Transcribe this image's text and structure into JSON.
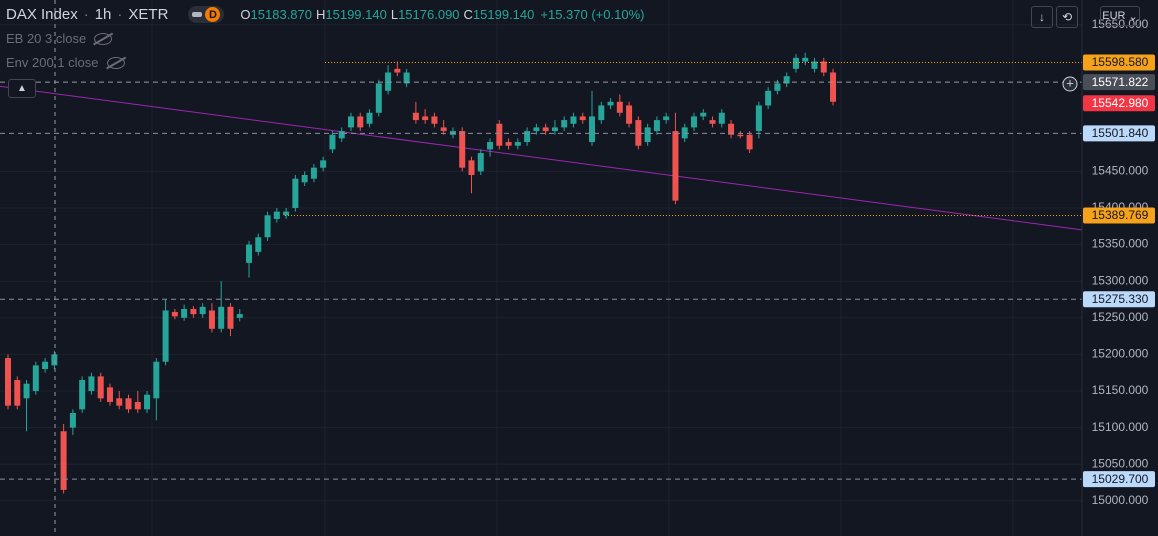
{
  "header": {
    "symbol": "DAX Index",
    "interval": "1h",
    "exchange": "XETR",
    "badge": "D",
    "ohlc": [
      {
        "key": "O",
        "value": "15183.870"
      },
      {
        "key": "H",
        "value": "15199.140"
      },
      {
        "key": "L",
        "value": "15176.090"
      },
      {
        "key": "C",
        "value": "15199.140"
      }
    ],
    "change": "+15.370 (+0.10%)",
    "indicators": [
      "EB 20 3 close",
      "Env 200 1 close"
    ],
    "currency": "EUR"
  },
  "chart_data": {
    "type": "candlestick",
    "up_color": "#26a69a",
    "down_color": "#ef5350",
    "open": [
      15195,
      15165,
      15140,
      15150,
      15180,
      15185,
      15095,
      15100,
      15125,
      15150,
      15170,
      15155,
      15140,
      15140,
      15135,
      15125,
      15140,
      15190,
      15258,
      15250,
      15262,
      15255,
      15260,
      15235,
      15265,
      15250,
      15325,
      15340,
      15360,
      15385,
      15390,
      15400,
      15435,
      15440,
      15455,
      15480,
      15495,
      15510,
      15525,
      15515,
      15530,
      15560,
      15590,
      15570,
      15530,
      15525,
      15525,
      15510,
      15500,
      15505,
      15465,
      15450,
      15480,
      15515,
      15490,
      15485,
      15490,
      15505,
      15510,
      15505,
      15510,
      15515,
      15525,
      15490,
      15520,
      15540,
      15545,
      15540,
      15520,
      15490,
      15505,
      15520,
      15505,
      15495,
      15510,
      15525,
      15520,
      15515,
      15515,
      15500,
      15500,
      15505,
      15540,
      15560,
      15570,
      15590,
      15600,
      15590,
      15600,
      15585
    ],
    "high": [
      15200,
      15170,
      15165,
      15190,
      15195,
      15205,
      15105,
      15125,
      15170,
      15175,
      15175,
      15160,
      15150,
      15145,
      15150,
      15150,
      15195,
      15275,
      15262,
      15268,
      15266,
      15270,
      15270,
      15300,
      15270,
      15262,
      15355,
      15365,
      15395,
      15400,
      15400,
      15445,
      15450,
      15460,
      15470,
      15505,
      15510,
      15530,
      15530,
      15535,
      15575,
      15595,
      15600,
      15590,
      15545,
      15535,
      15530,
      15520,
      15510,
      15510,
      15470,
      15480,
      15495,
      15520,
      15495,
      15495,
      15510,
      15515,
      15515,
      15520,
      15525,
      15530,
      15530,
      15560,
      15545,
      15550,
      15555,
      15545,
      15525,
      15515,
      15525,
      15530,
      15530,
      15515,
      15530,
      15535,
      15525,
      15535,
      15520,
      15505,
      15505,
      15545,
      15565,
      15575,
      15585,
      15610,
      15612,
      15605,
      15605,
      15590
    ],
    "low": [
      15125,
      15125,
      15095,
      15145,
      15175,
      15180,
      15010,
      15090,
      15120,
      15145,
      15135,
      15130,
      15125,
      15120,
      15120,
      15120,
      15110,
      15185,
      15248,
      15246,
      15250,
      15250,
      15230,
      15230,
      15225,
      15245,
      15305,
      15335,
      15355,
      15380,
      15385,
      15395,
      15430,
      15435,
      15450,
      15475,
      15490,
      15505,
      15505,
      15510,
      15525,
      15555,
      15580,
      15565,
      15515,
      15515,
      15510,
      15500,
      15495,
      15450,
      15420,
      15445,
      15470,
      15480,
      15480,
      15480,
      15485,
      15500,
      15500,
      15500,
      15505,
      15510,
      15515,
      15485,
      15515,
      15535,
      15525,
      15510,
      15480,
      15485,
      15500,
      15515,
      15405,
      15490,
      15505,
      15520,
      15510,
      15510,
      15495,
      15495,
      15475,
      15495,
      15535,
      15555,
      15565,
      15585,
      15595,
      15585,
      15580,
      15540
    ],
    "close": [
      15130,
      15130,
      15160,
      15185,
      15190,
      15200,
      15015,
      15120,
      15165,
      15170,
      15140,
      15135,
      15130,
      15125,
      15125,
      15145,
      15190,
      15260,
      15252,
      15262,
      15255,
      15265,
      15235,
      15265,
      15235,
      15255,
      15350,
      15360,
      15390,
      15395,
      15395,
      15440,
      15445,
      15455,
      15465,
      15500,
      15505,
      15525,
      15510,
      15530,
      15570,
      15585,
      15585,
      15585,
      15520,
      15520,
      15515,
      15505,
      15505,
      15455,
      15445,
      15475,
      15490,
      15485,
      15485,
      15490,
      15505,
      15510,
      15505,
      15510,
      15520,
      15525,
      15520,
      15525,
      15540,
      15545,
      15530,
      15515,
      15485,
      15510,
      15520,
      15525,
      15410,
      15510,
      15525,
      15530,
      15515,
      15530,
      15500,
      15498,
      15480,
      15540,
      15560,
      15570,
      15580,
      15605,
      15605,
      15600,
      15585,
      15545
    ],
    "ylim": [
      14952,
      15684
    ],
    "yticks": [
      {
        "value": 15650,
        "label": "15650.000"
      },
      {
        "value": 15450,
        "label": "15450.000"
      },
      {
        "value": 15400,
        "label": "15400.000"
      },
      {
        "value": 15350,
        "label": "15350.000"
      },
      {
        "value": 15300,
        "label": "15300.000"
      },
      {
        "value": 15250,
        "label": "15250.000"
      },
      {
        "value": 15200,
        "label": "15200.000"
      },
      {
        "value": 15150,
        "label": "15150.000"
      },
      {
        "value": 15100,
        "label": "15100.000"
      },
      {
        "value": 15050,
        "label": "15050.000"
      },
      {
        "value": 15000,
        "label": "15000.000"
      }
    ],
    "grid": true,
    "price_lines": [
      {
        "value": 15598.58,
        "label": "15598.580",
        "color": "#f7a21b",
        "style": "dotted"
      },
      {
        "value": 15571.822,
        "label": "15571.822",
        "color": "#4a4e59",
        "style": "dashed"
      },
      {
        "value": 15542.98,
        "label": "15542.980",
        "color": "#f23645",
        "style": "none"
      },
      {
        "value": 15501.84,
        "label": "15501.840",
        "color": "#bbd9fb",
        "style": "dashed"
      },
      {
        "value": 15389.769,
        "label": "15389.769",
        "color": "#f7a21b",
        "style": "dotted"
      },
      {
        "value": 15275.33,
        "label": "15275.330",
        "color": "#bbd9fb",
        "style": "dashed"
      },
      {
        "value": 15029.7,
        "label": "15029.700",
        "color": "#bbd9fb",
        "style": "dashed"
      }
    ],
    "trend_line": {
      "color": "#9c27b0",
      "values": [
        15566,
        15370
      ]
    }
  }
}
